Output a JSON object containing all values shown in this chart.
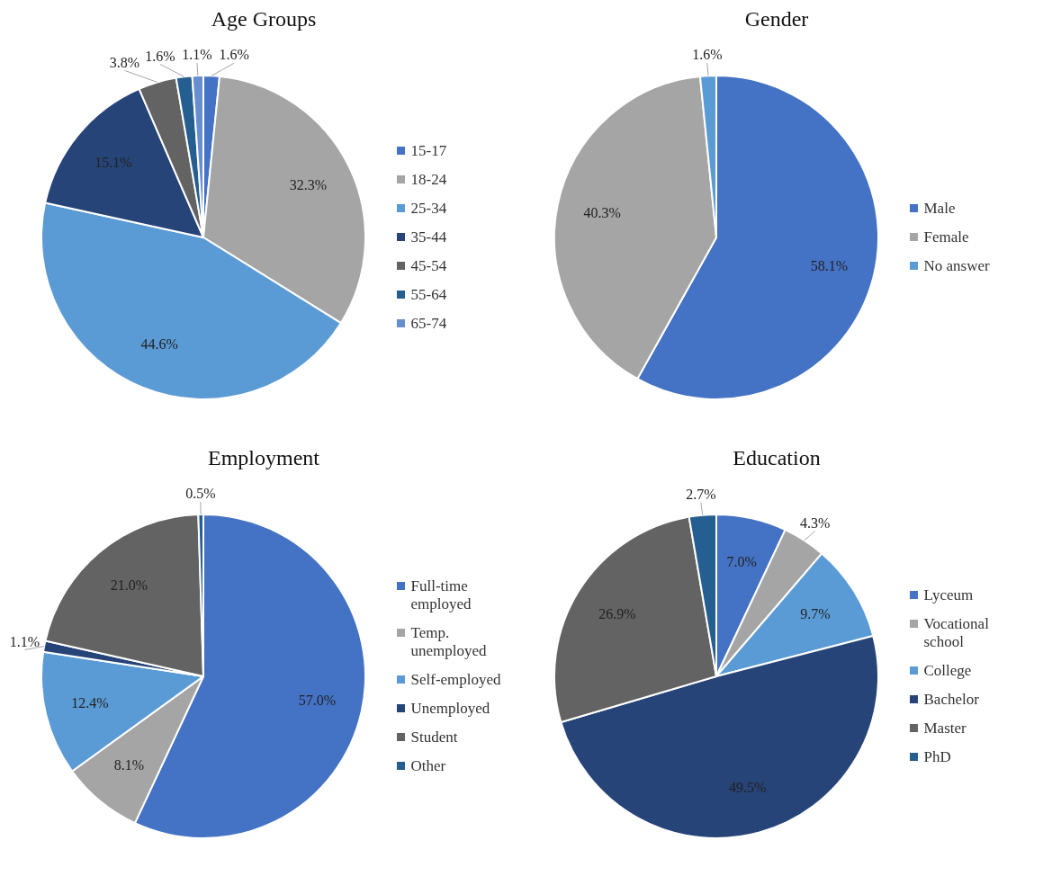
{
  "chart_data": [
    {
      "type": "pie",
      "title": "Age Groups",
      "categories": [
        "15-17",
        "18-24",
        "25-34",
        "35-44",
        "45-54",
        "55-64",
        "65-74"
      ],
      "values": [
        1.6,
        32.3,
        44.6,
        15.1,
        3.8,
        1.6,
        1.1
      ],
      "value_labels": [
        "1.6%",
        "32.3%",
        "44.6%",
        "15.1%",
        "3.8%",
        "1.6%",
        "1.1%"
      ],
      "colors": [
        "#4472c4",
        "#a5a5a5",
        "#5b9bd5",
        "#264478",
        "#636363",
        "#255e91",
        "#698ed0"
      ],
      "legend": "right"
    },
    {
      "type": "pie",
      "title": "Gender",
      "categories": [
        "Male",
        "Female",
        "No answer"
      ],
      "values": [
        58.1,
        40.3,
        1.6
      ],
      "value_labels": [
        "58.1%",
        "40.3%",
        "1.6%"
      ],
      "colors": [
        "#4472c4",
        "#a5a5a5",
        "#5b9bd5"
      ],
      "legend": "right"
    },
    {
      "type": "pie",
      "title": "Employment",
      "categories": [
        "Full-time employed",
        "Temp. unemployed",
        "Self-employed",
        "Unemployed",
        "Student",
        "Other"
      ],
      "values": [
        57.0,
        8.1,
        12.4,
        1.1,
        21.0,
        0.5
      ],
      "value_labels": [
        "57.0%",
        "8.1%",
        "12.4%",
        "1.1%",
        "21.0%",
        "0.5%"
      ],
      "colors": [
        "#4472c4",
        "#a5a5a5",
        "#5b9bd5",
        "#264478",
        "#636363",
        "#255e91"
      ],
      "legend": "right"
    },
    {
      "type": "pie",
      "title": "Education",
      "categories": [
        "Lyceum",
        "Vocational school",
        "College",
        "Bachelor",
        "Master",
        "PhD"
      ],
      "values": [
        7.0,
        4.3,
        9.7,
        49.5,
        26.9,
        2.7
      ],
      "value_labels": [
        "7.0%",
        "4.3%",
        "9.7%",
        "49.5%",
        "26.9%",
        "2.7%"
      ],
      "colors": [
        "#4472c4",
        "#a5a5a5",
        "#5b9bd5",
        "#264478",
        "#636363",
        "#255e91"
      ],
      "legend": "right"
    }
  ]
}
